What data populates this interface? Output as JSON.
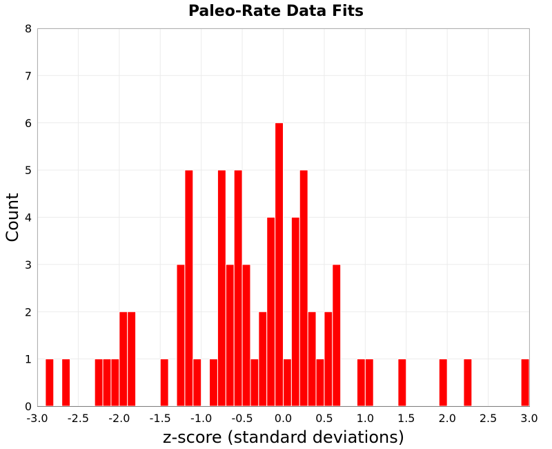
{
  "chart_data": {
    "type": "bar",
    "title": "Paleo-Rate Data Fits",
    "xlabel": "z-score (standard deviations)",
    "ylabel": "Count",
    "xlim": [
      -3.0,
      3.0
    ],
    "ylim": [
      0,
      8
    ],
    "x_ticks": [
      "-3.0",
      "-2.5",
      "-2.0",
      "-1.5",
      "-1.0",
      "-0.5",
      "0.0",
      "0.5",
      "1.0",
      "1.5",
      "2.0",
      "2.5",
      "3.0"
    ],
    "y_ticks": [
      "0",
      "1",
      "2",
      "3",
      "4",
      "5",
      "6",
      "7",
      "8"
    ],
    "bin_width": 0.1,
    "bar_color": "#ff0000",
    "grid": true,
    "bins": [
      {
        "x": -2.85,
        "count": 1
      },
      {
        "x": -2.65,
        "count": 1
      },
      {
        "x": -2.25,
        "count": 1
      },
      {
        "x": -2.15,
        "count": 1
      },
      {
        "x": -2.05,
        "count": 1
      },
      {
        "x": -1.95,
        "count": 2
      },
      {
        "x": -1.85,
        "count": 2
      },
      {
        "x": -1.45,
        "count": 1
      },
      {
        "x": -1.25,
        "count": 3
      },
      {
        "x": -1.15,
        "count": 5
      },
      {
        "x": -1.05,
        "count": 1
      },
      {
        "x": -0.85,
        "count": 1
      },
      {
        "x": -0.75,
        "count": 5
      },
      {
        "x": -0.65,
        "count": 3
      },
      {
        "x": -0.55,
        "count": 5
      },
      {
        "x": -0.45,
        "count": 3
      },
      {
        "x": -0.35,
        "count": 1
      },
      {
        "x": -0.25,
        "count": 2
      },
      {
        "x": -0.15,
        "count": 4
      },
      {
        "x": -0.05,
        "count": 6
      },
      {
        "x": 0.05,
        "count": 1
      },
      {
        "x": 0.15,
        "count": 4
      },
      {
        "x": 0.25,
        "count": 5
      },
      {
        "x": 0.35,
        "count": 2
      },
      {
        "x": 0.45,
        "count": 1
      },
      {
        "x": 0.55,
        "count": 2
      },
      {
        "x": 0.65,
        "count": 3
      },
      {
        "x": 0.95,
        "count": 1
      },
      {
        "x": 1.05,
        "count": 1
      },
      {
        "x": 1.45,
        "count": 1
      },
      {
        "x": 1.95,
        "count": 1
      },
      {
        "x": 2.25,
        "count": 1
      },
      {
        "x": 2.95,
        "count": 1
      }
    ]
  }
}
